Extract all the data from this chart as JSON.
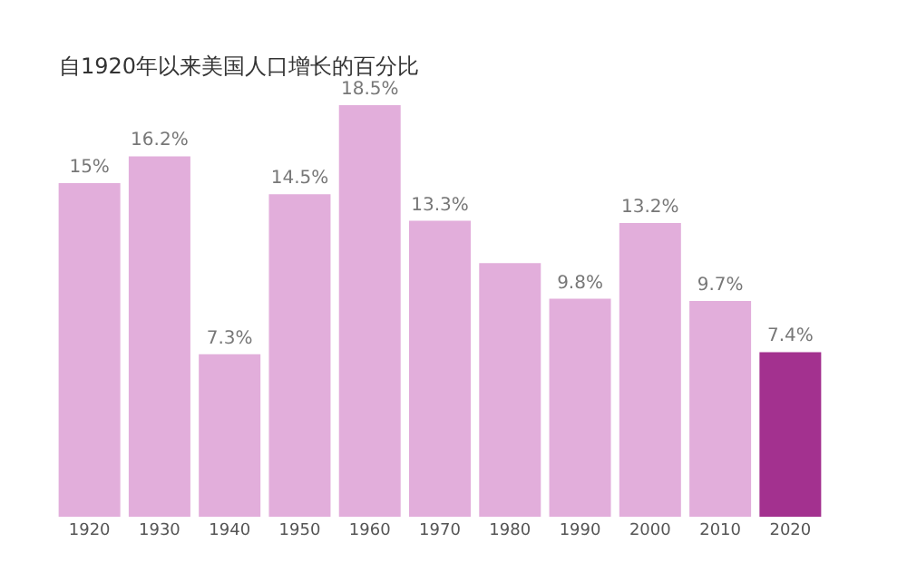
{
  "chart_data": {
    "type": "bar",
    "title": "自1920年以来美国人口增长的百分比",
    "categories": [
      "1920",
      "1930",
      "1940",
      "1950",
      "1960",
      "1970",
      "1980",
      "1990",
      "2000",
      "2010",
      "2020"
    ],
    "values": [
      15,
      16.2,
      7.3,
      14.5,
      18.5,
      13.3,
      11.4,
      9.8,
      13.2,
      9.7,
      7.4
    ],
    "value_labels": [
      "15%",
      "16.2%",
      "7.3%",
      "14.5%",
      "18.5%",
      "13.3%",
      null,
      "9.8%",
      "13.2%",
      "9.7%",
      "7.4%"
    ],
    "colors": [
      "#e2aedb",
      "#e2aedb",
      "#e2aedb",
      "#e2aedb",
      "#e2aedb",
      "#e2aedb",
      "#e2aedb",
      "#e2aedb",
      "#e2aedb",
      "#e2aedb",
      "#a3318f"
    ],
    "tick_labels": "x"
  }
}
